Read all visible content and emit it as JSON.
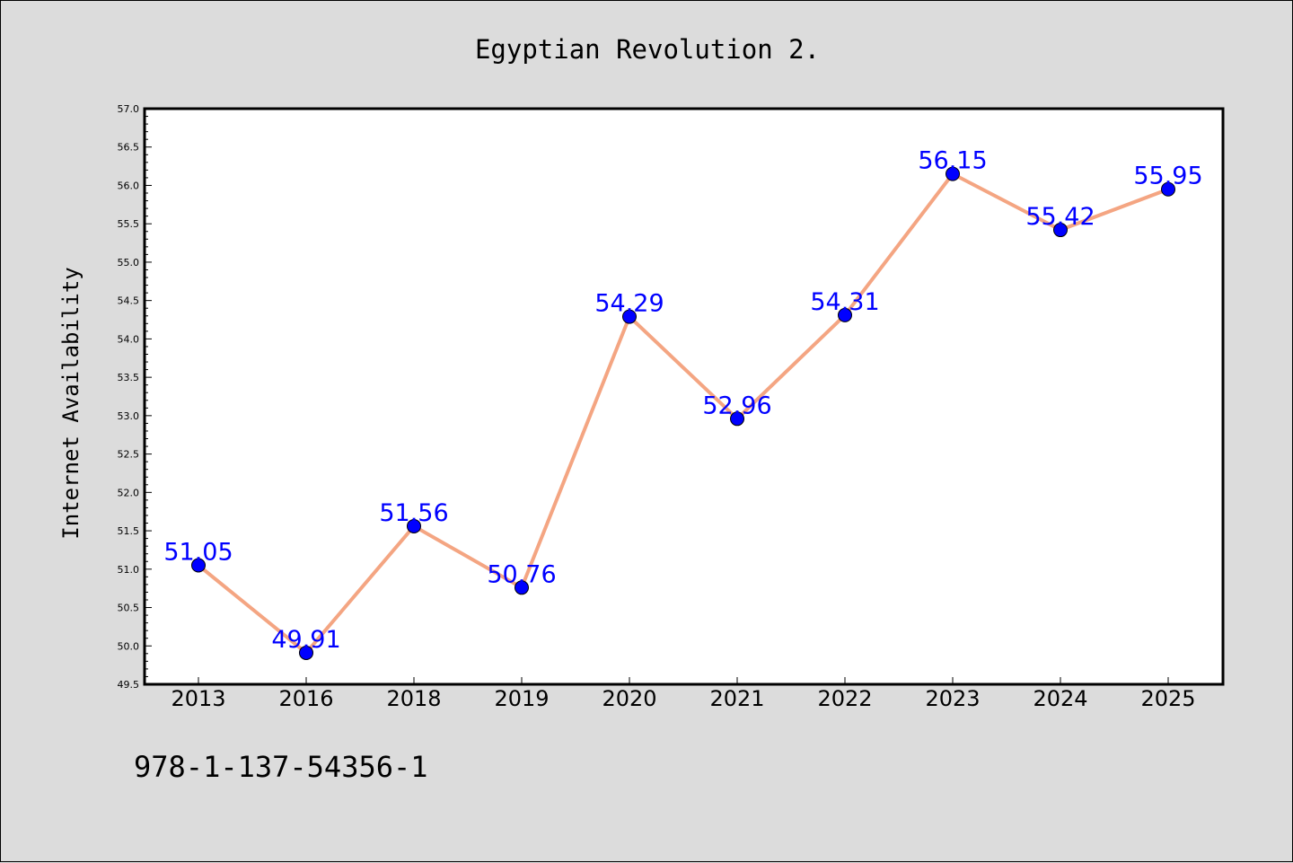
{
  "chart_data": {
    "type": "line",
    "title": "Egyptian Revolution 2.",
    "xlabel": "",
    "ylabel": "Internet Availability",
    "categories": [
      "2013",
      "2016",
      "2018",
      "2019",
      "2020",
      "2021",
      "2022",
      "2023",
      "2024",
      "2025"
    ],
    "series": [
      {
        "values": [
          51.05,
          49.91,
          51.56,
          50.76,
          54.29,
          52.96,
          54.31,
          56.15,
          55.42,
          55.95
        ],
        "line_color": "#f4a582",
        "marker_color": "#0000ff"
      }
    ],
    "data_labels": [
      "51.05",
      "49.91",
      "51.56",
      "50.76",
      "54.29",
      "52.96",
      "54.31",
      "56.15",
      "55.42",
      "55.95"
    ],
    "ylim": [
      49.5,
      57.0
    ],
    "yticks": [
      "49.5",
      "50.0",
      "50.5",
      "51.0",
      "51.5",
      "52.0",
      "52.5",
      "53.0",
      "53.5",
      "54.0",
      "54.5",
      "55.0",
      "55.5",
      "56.0",
      "56.5",
      "57.0"
    ],
    "grid": false,
    "legend": "none"
  },
  "footnote": "978-1-137-54356-1",
  "colors": {
    "background": "#dcdcdc",
    "plot_background": "#ffffff",
    "line": "#f4a582",
    "marker": "#0000ff",
    "data_label": "#0000ff"
  }
}
